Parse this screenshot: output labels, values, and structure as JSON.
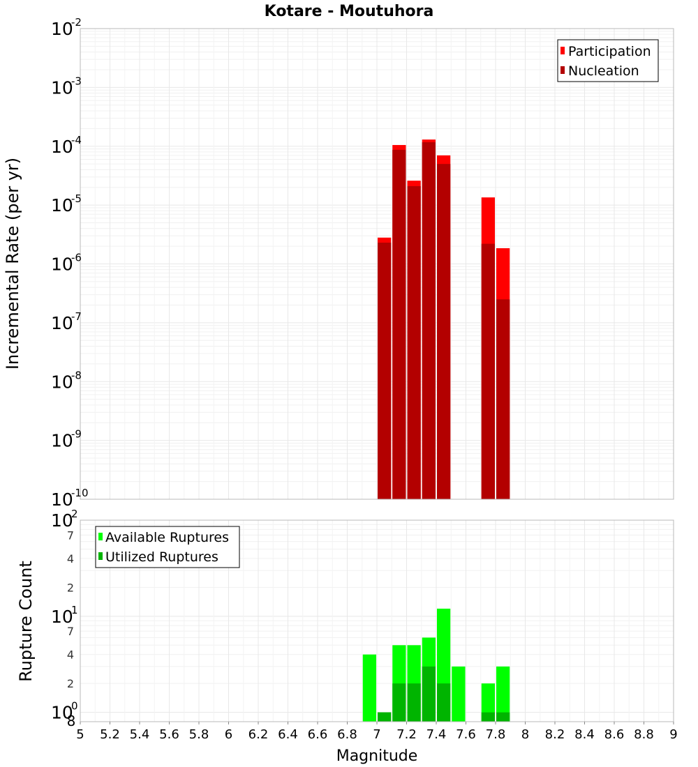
{
  "title": "Kotare - Moutuhora",
  "colors": {
    "participation": "#ff0000",
    "nucleation": "#b30000",
    "available": "#00ff00",
    "utilized": "#00b400",
    "grid": "#e8e8e8",
    "frame": "#b8b8b8"
  },
  "chart_data": [
    {
      "type": "bar",
      "scale": "log",
      "title": "Kotare - Moutuhora",
      "xlabel": "Magnitude",
      "ylabel": "Incremental Rate (per yr)",
      "xlim": [
        5,
        9
      ],
      "ylim": [
        1e-10,
        0.01
      ],
      "y_ticks": [
        {
          "exp": -10,
          "base": "10",
          "sup": "-10"
        },
        {
          "exp": -9,
          "base": "10",
          "sup": "-9"
        },
        {
          "exp": -8,
          "base": "10",
          "sup": "-8"
        },
        {
          "exp": -7,
          "base": "10",
          "sup": "-7"
        },
        {
          "exp": -6,
          "base": "10",
          "sup": "-6"
        },
        {
          "exp": -5,
          "base": "10",
          "sup": "-5"
        },
        {
          "exp": -4,
          "base": "10",
          "sup": "-4"
        },
        {
          "exp": -3,
          "base": "10",
          "sup": "-3"
        },
        {
          "exp": -2,
          "base": "10",
          "sup": "-2"
        }
      ],
      "legend": [
        "Participation",
        "Nucleation"
      ],
      "legend_position": "top-right",
      "bar_width": 0.1,
      "series": [
        {
          "name": "Participation",
          "x": [
            7.05,
            7.15,
            7.25,
            7.35,
            7.45,
            7.75,
            7.85
          ],
          "values": [
            2.8e-06,
            0.000105,
            2.6e-05,
            0.00013,
            7e-05,
            1.35e-05,
            1.85e-06
          ]
        },
        {
          "name": "Nucleation",
          "x": [
            7.05,
            7.15,
            7.25,
            7.35,
            7.45,
            7.75,
            7.85
          ],
          "values": [
            2.3e-06,
            8.7e-05,
            2.1e-05,
            0.000117,
            5e-05,
            2.2e-06,
            2.5e-07
          ]
        }
      ]
    },
    {
      "type": "bar",
      "scale": "log",
      "xlabel": "Magnitude",
      "ylabel": "Rupture Count",
      "xlim": [
        5,
        9
      ],
      "ylim": [
        0.8,
        100
      ],
      "x_ticks": [
        "5",
        "5.2",
        "5.4",
        "5.6",
        "5.8",
        "6",
        "6.2",
        "6.4",
        "6.6",
        "6.8",
        "7",
        "7.2",
        "7.4",
        "7.6",
        "7.8",
        "8",
        "8.2",
        "8.4",
        "8.6",
        "8.8",
        "9"
      ],
      "y_major_ticks": [
        {
          "value": 1,
          "base": "10",
          "sup": "0"
        },
        {
          "value": 10,
          "base": "10",
          "sup": "1"
        },
        {
          "value": 100,
          "base": "10",
          "sup": "2"
        }
      ],
      "y_minor_ticks": [
        {
          "value": 0.8,
          "label": "8"
        },
        {
          "value": 2,
          "label": "2"
        },
        {
          "value": 4,
          "label": "4"
        },
        {
          "value": 7,
          "label": "7"
        },
        {
          "value": 20,
          "label": "2"
        },
        {
          "value": 40,
          "label": "4"
        },
        {
          "value": 70,
          "label": "7"
        }
      ],
      "legend": [
        "Available Ruptures",
        "Utilized Ruptures"
      ],
      "legend_position": "top-left",
      "bar_width": 0.1,
      "series": [
        {
          "name": "Available Ruptures",
          "x": [
            6.95,
            7.05,
            7.15,
            7.25,
            7.35,
            7.45,
            7.55,
            7.75,
            7.85
          ],
          "values": [
            4,
            1,
            5,
            5,
            6,
            12,
            3,
            2,
            3
          ]
        },
        {
          "name": "Utilized Ruptures",
          "x": [
            7.05,
            7.15,
            7.25,
            7.35,
            7.45,
            7.75,
            7.85
          ],
          "values": [
            1,
            2,
            2,
            3,
            2,
            1,
            1
          ]
        }
      ]
    }
  ]
}
